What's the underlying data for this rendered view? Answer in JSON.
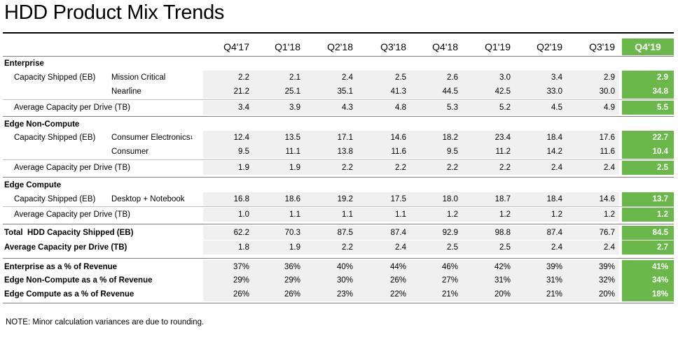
{
  "title": "HDD Product Mix Trends",
  "columns": [
    "Q4'17",
    "Q1'18",
    "Q2'18",
    "Q3'18",
    "Q4'18",
    "Q1'19",
    "Q2'19",
    "Q3'19",
    "Q4'19"
  ],
  "colors": {
    "highlight": "#6ab74a",
    "row_band": "#f0f0f0",
    "rule": "#7f7f7f"
  },
  "rows": [
    {
      "label": "Enterprise",
      "sub": "",
      "values": [],
      "kind": "section"
    },
    {
      "label": "Capacity Shipped (EB)",
      "sub": "Mission Critical",
      "values": [
        "2.2",
        "2.1",
        "2.4",
        "2.5",
        "2.6",
        "3.0",
        "3.4",
        "2.9",
        "2.9"
      ],
      "kind": "data"
    },
    {
      "label": "",
      "sub": "Nearline",
      "values": [
        "21.2",
        "25.1",
        "35.1",
        "41.3",
        "44.5",
        "42.5",
        "33.0",
        "30.0",
        "34.8"
      ],
      "kind": "data"
    },
    {
      "label": "Average Capacity per Drive (TB)",
      "sub": "",
      "values": [
        "3.4",
        "3.9",
        "4.3",
        "4.8",
        "5.3",
        "5.2",
        "4.5",
        "4.9",
        "5.5"
      ],
      "kind": "data"
    },
    {
      "label": "Edge Non-Compute",
      "sub": "",
      "values": [],
      "kind": "section"
    },
    {
      "label": "Capacity Shipped (EB)",
      "sub": "Consumer Electronics",
      "sup": "1",
      "values": [
        "12.4",
        "13.5",
        "17.1",
        "14.6",
        "18.2",
        "23.4",
        "18.4",
        "17.6",
        "22.7"
      ],
      "kind": "data"
    },
    {
      "label": "",
      "sub": "Consumer",
      "values": [
        "9.5",
        "11.1",
        "13.8",
        "11.6",
        "9.5",
        "11.2",
        "14.2",
        "11.6",
        "10.4"
      ],
      "kind": "data"
    },
    {
      "label": "Average Capacity per Drive (TB)",
      "sub": "",
      "values": [
        "1.9",
        "1.9",
        "2.2",
        "2.2",
        "2.2",
        "2.2",
        "2.4",
        "2.4",
        "2.5"
      ],
      "kind": "data"
    },
    {
      "label": "Edge Compute",
      "sub": "",
      "values": [],
      "kind": "section"
    },
    {
      "label": "Capacity Shipped (EB)",
      "sub": "Desktop + Notebook",
      "values": [
        "16.8",
        "18.6",
        "19.2",
        "17.5",
        "18.0",
        "18.7",
        "18.4",
        "14.6",
        "13.7"
      ],
      "kind": "data"
    },
    {
      "label": "Average Capacity per Drive (TB)",
      "sub": "",
      "values": [
        "1.0",
        "1.1",
        "1.1",
        "1.1",
        "1.2",
        "1.2",
        "1.2",
        "1.2",
        "1.2"
      ],
      "kind": "data"
    },
    {
      "label": "Total  HDD Capacity Shipped (EB)",
      "sub": "",
      "values": [
        "62.2",
        "70.3",
        "87.5",
        "87.4",
        "92.9",
        "98.8",
        "87.4",
        "76.7",
        "84.5"
      ],
      "kind": "total"
    },
    {
      "label": "Average Capacity per Drive (TB)",
      "sub": "",
      "values": [
        "1.8",
        "1.9",
        "2.2",
        "2.4",
        "2.5",
        "2.5",
        "2.4",
        "2.4",
        "2.7"
      ],
      "kind": "total"
    },
    {
      "label": "Enterprise as a % of Revenue",
      "sub": "",
      "values": [
        "37%",
        "36%",
        "40%",
        "44%",
        "46%",
        "42%",
        "39%",
        "39%",
        "41%"
      ],
      "kind": "total"
    },
    {
      "label": "Edge Non-Compute as a % of Revenue",
      "sub": "",
      "values": [
        "29%",
        "29%",
        "30%",
        "26%",
        "27%",
        "31%",
        "31%",
        "32%",
        "34%"
      ],
      "kind": "total"
    },
    {
      "label": "Edge Compute as a % of Revenue",
      "sub": "",
      "values": [
        "26%",
        "26%",
        "23%",
        "22%",
        "21%",
        "20%",
        "21%",
        "20%",
        "18%"
      ],
      "kind": "total"
    }
  ],
  "note": "NOTE: Minor calculation variances are due to rounding."
}
